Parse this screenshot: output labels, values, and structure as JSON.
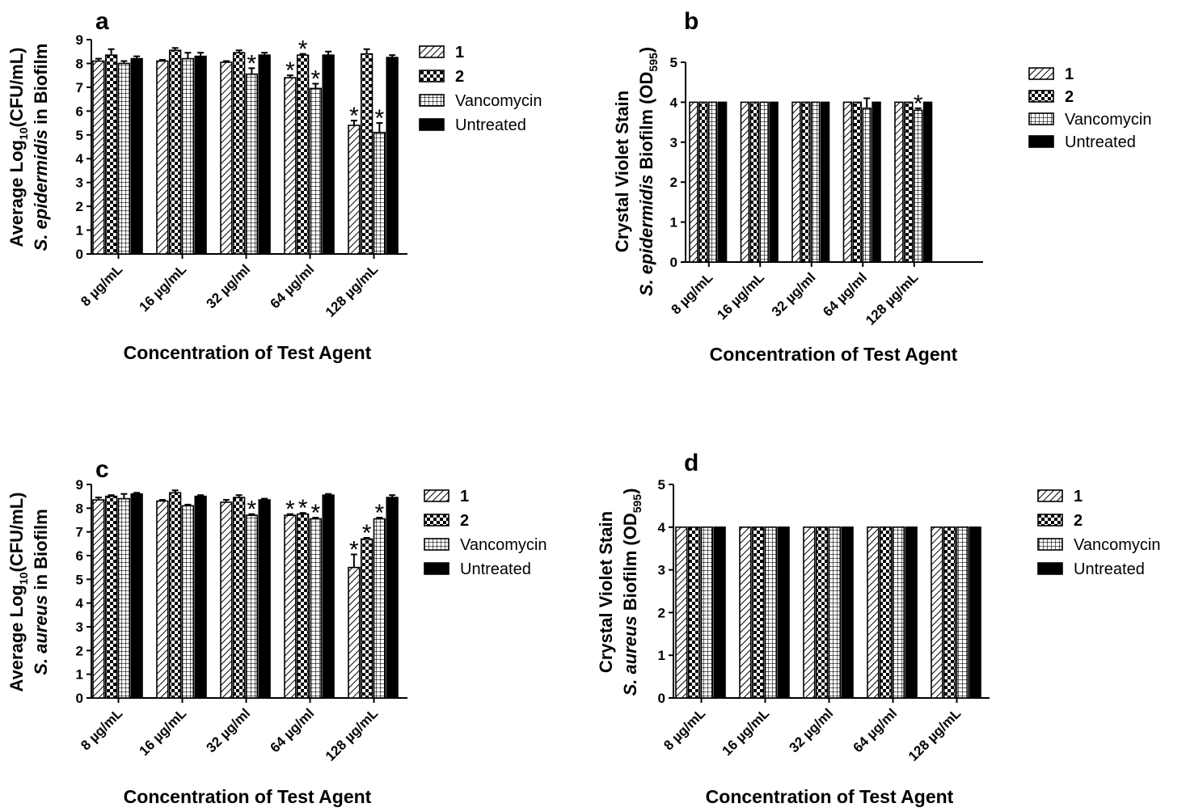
{
  "chart_data": [
    {
      "panel": "a",
      "type": "bar",
      "categories": [
        "8 µg/mL",
        "16 µg/mL",
        "32 µg/ml",
        "64 µg/ml",
        "128 µg/mL"
      ],
      "series": [
        {
          "name": "1",
          "values": [
            8.1,
            8.1,
            8.05,
            7.4,
            5.4
          ],
          "errors": [
            0.1,
            0.05,
            0.05,
            0.1,
            0.2
          ],
          "significant": [
            false,
            false,
            false,
            true,
            true
          ]
        },
        {
          "name": "2",
          "values": [
            8.35,
            8.55,
            8.45,
            8.35,
            8.4
          ],
          "errors": [
            0.25,
            0.1,
            0.1,
            0.05,
            0.2
          ],
          "significant": [
            false,
            false,
            false,
            true,
            false
          ]
        },
        {
          "name": "Vancomycin",
          "values": [
            8.0,
            8.2,
            7.55,
            6.95,
            5.1
          ],
          "errors": [
            0.1,
            0.25,
            0.25,
            0.2,
            0.4
          ],
          "significant": [
            false,
            false,
            true,
            true,
            true
          ]
        },
        {
          "name": "Untreated",
          "values": [
            8.2,
            8.3,
            8.35,
            8.35,
            8.25
          ],
          "errors": [
            0.1,
            0.15,
            0.1,
            0.15,
            0.1
          ],
          "significant": [
            false,
            false,
            false,
            false,
            false
          ]
        }
      ],
      "ylim": [
        0,
        9
      ],
      "yticks": [
        "0",
        "1",
        "2",
        "3",
        "4",
        "5",
        "6",
        "7",
        "8",
        "9"
      ],
      "xlabel": "Concentration of Test Agent",
      "ylabel_line1_parts": [
        "Average Log",
        "10",
        "(CFU/mL)"
      ],
      "ylabel_line2_parts": [
        "S. epidermidis",
        " in Biofilm"
      ],
      "legend": "right"
    },
    {
      "panel": "b",
      "type": "bar",
      "categories": [
        "8 µg/mL",
        "16 µg/mL",
        "32 µg/ml",
        "64 µg/ml",
        "128 µg/mL"
      ],
      "series": [
        {
          "name": "1",
          "values": [
            4.0,
            4.0,
            4.0,
            4.0,
            4.0
          ],
          "errors": [
            0,
            0,
            0,
            0,
            0
          ],
          "significant": [
            false,
            false,
            false,
            false,
            false
          ]
        },
        {
          "name": "2",
          "values": [
            4.0,
            4.0,
            4.0,
            4.0,
            4.0
          ],
          "errors": [
            0,
            0,
            0,
            0,
            0
          ],
          "significant": [
            false,
            false,
            false,
            false,
            false
          ]
        },
        {
          "name": "Vancomycin",
          "values": [
            4.0,
            4.0,
            4.0,
            3.85,
            3.8
          ],
          "errors": [
            0,
            0,
            0,
            0.25,
            0.05
          ],
          "significant": [
            false,
            false,
            false,
            false,
            true
          ]
        },
        {
          "name": "Untreated",
          "values": [
            4.0,
            4.0,
            4.0,
            4.0,
            4.0
          ],
          "errors": [
            0,
            0,
            0,
            0,
            0
          ],
          "significant": [
            false,
            false,
            false,
            false,
            false
          ]
        }
      ],
      "ylim": [
        0,
        5
      ],
      "yticks": [
        "0",
        "1",
        "2",
        "3",
        "4",
        "5"
      ],
      "xlabel": "Concentration of Test Agent",
      "ylabel_line1_parts": [
        "Crystal Violet Stain",
        "",
        ""
      ],
      "ylabel_line2_parts": [
        "S. epidermidis",
        " Biofilm (OD",
        "595",
        ")"
      ],
      "legend": "right"
    },
    {
      "panel": "c",
      "type": "bar",
      "categories": [
        "8 µg/mL",
        "16 µg/mL",
        "32 µg/ml",
        "64 µg/ml",
        "128 µg/mL"
      ],
      "series": [
        {
          "name": "1",
          "values": [
            8.35,
            8.3,
            8.25,
            7.7,
            5.5
          ],
          "errors": [
            0.1,
            0.05,
            0.1,
            0.05,
            0.55
          ],
          "significant": [
            false,
            false,
            false,
            true,
            true
          ]
        },
        {
          "name": "2",
          "values": [
            8.5,
            8.65,
            8.45,
            7.75,
            6.7
          ],
          "errors": [
            0.05,
            0.1,
            0.1,
            0.05,
            0.05
          ],
          "significant": [
            false,
            false,
            false,
            true,
            true
          ]
        },
        {
          "name": "Vancomycin",
          "values": [
            8.4,
            8.1,
            7.7,
            7.55,
            7.55
          ],
          "errors": [
            0.2,
            0.05,
            0.05,
            0.05,
            0.05
          ],
          "significant": [
            false,
            false,
            true,
            true,
            true
          ]
        },
        {
          "name": "Untreated",
          "values": [
            8.6,
            8.5,
            8.35,
            8.55,
            8.45
          ],
          "errors": [
            0.05,
            0.05,
            0.05,
            0.05,
            0.1
          ],
          "significant": [
            false,
            false,
            false,
            false,
            false
          ]
        }
      ],
      "ylim": [
        0,
        9
      ],
      "yticks": [
        "0",
        "1",
        "2",
        "3",
        "4",
        "5",
        "6",
        "7",
        "8",
        "9"
      ],
      "xlabel": "Concentration of Test Agent",
      "ylabel_line1_parts": [
        "Average Log",
        "10",
        "(CFU/mL)"
      ],
      "ylabel_line2_parts": [
        "S. aureus",
        " in Biofilm"
      ],
      "legend": "right"
    },
    {
      "panel": "d",
      "type": "bar",
      "categories": [
        "8 µg/mL",
        "16 µg/mL",
        "32 µg/ml",
        "64 µg/ml",
        "128 µg/mL"
      ],
      "series": [
        {
          "name": "1",
          "values": [
            4.0,
            4.0,
            4.0,
            4.0,
            4.0
          ],
          "errors": [
            0,
            0,
            0,
            0,
            0
          ],
          "significant": [
            false,
            false,
            false,
            false,
            false
          ]
        },
        {
          "name": "2",
          "values": [
            4.0,
            4.0,
            4.0,
            4.0,
            4.0
          ],
          "errors": [
            0,
            0,
            0,
            0,
            0
          ],
          "significant": [
            false,
            false,
            false,
            false,
            false
          ]
        },
        {
          "name": "Vancomycin",
          "values": [
            4.0,
            4.0,
            4.0,
            4.0,
            4.0
          ],
          "errors": [
            0,
            0,
            0,
            0,
            0
          ],
          "significant": [
            false,
            false,
            false,
            false,
            false
          ]
        },
        {
          "name": "Untreated",
          "values": [
            4.0,
            4.0,
            4.0,
            4.0,
            4.0
          ],
          "errors": [
            0,
            0,
            0,
            0,
            0
          ],
          "significant": [
            false,
            false,
            false,
            false,
            false
          ]
        }
      ],
      "ylim": [
        0,
        5
      ],
      "yticks": [
        "0",
        "1",
        "2",
        "3",
        "4",
        "5"
      ],
      "xlabel": "Concentration of Test Agent",
      "ylabel_line1_parts": [
        "Crystal Violet Stain",
        "",
        ""
      ],
      "ylabel_line2_parts": [
        "S. aureus",
        " Biofilm (OD",
        "595",
        ")"
      ],
      "legend": "right"
    }
  ],
  "significance_marker": "*",
  "legend_fills": [
    "diagonal-hatch",
    "checkerboard",
    "grid",
    "solid-black"
  ]
}
